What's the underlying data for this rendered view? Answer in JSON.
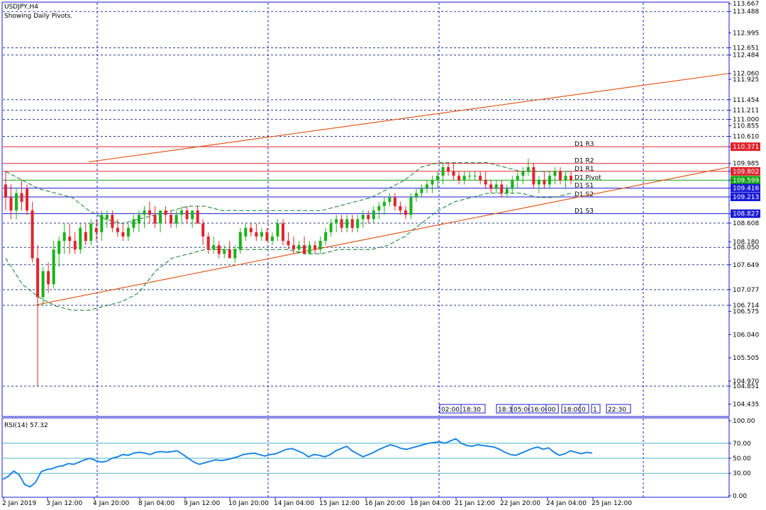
{
  "header": {
    "symbol_line": "USDJPY,H4",
    "subtitle": "Showing Daily Pivots."
  },
  "rsi_label": "RSI(14) 57.32",
  "colors": {
    "bull": "#17b317",
    "bear": "#e0232d",
    "grid": "#1a1ad6",
    "channel": "#e05a1e",
    "bands": "#0a7a2b",
    "rsi": "#1e88e5",
    "red_level": "#e0232d",
    "green_level": "#14a314",
    "blue_level": "#1a1ad6"
  },
  "chart_data": [
    {
      "type": "candlestick",
      "title": "USDJPY,H4",
      "ylim": [
        104.2,
        113.72
      ],
      "price_axis_ticks": [
        "113.667",
        "113.488",
        "112.995",
        "112.651",
        "112.484",
        "112.060",
        "111.925",
        "111.454",
        "111.211",
        "111.000",
        "110.855",
        "110.610",
        "110.371",
        "109.985",
        "109.802",
        "109.599",
        "109.416",
        "109.213",
        "108.827",
        "108.608",
        "108.180",
        "108.050",
        "107.649",
        "107.077",
        "106.714",
        "106.575",
        "106.040",
        "105.505",
        "104.970",
        "104.851",
        "104.435"
      ],
      "highlighted_ticks": [
        {
          "value": "110.371",
          "style": "red"
        },
        {
          "value": "109.802",
          "style": "red"
        },
        {
          "value": "109.599",
          "style": "green"
        },
        {
          "value": "109.416",
          "style": "blue"
        },
        {
          "value": "109.213",
          "style": "blue"
        },
        {
          "value": "108.827",
          "style": "blue"
        }
      ],
      "pivot_levels": [
        {
          "name": "D1 R3",
          "value": 110.371,
          "style": "red"
        },
        {
          "name": "D1 R2",
          "value": 109.985,
          "style": "red"
        },
        {
          "name": "D1 R1",
          "value": 109.802,
          "style": "red"
        },
        {
          "name": "D1 Pivot",
          "value": 109.599,
          "style": "green"
        },
        {
          "name": "D1 S1",
          "value": 109.416,
          "style": "blue"
        },
        {
          "name": "D1 S2",
          "value": 109.213,
          "style": "blue"
        },
        {
          "name": "D1 S3",
          "value": 108.827,
          "style": "blue"
        }
      ],
      "dashed_levels": [
        113.488,
        112.651,
        112.484,
        111.454,
        111.211,
        111.0,
        110.61,
        108.608,
        108.05,
        107.649,
        107.077,
        106.714,
        104.851
      ],
      "time_axis_labels": [
        "2 Jan 2019",
        "3 Jan 12:00",
        "4 Jan 20:00",
        "8 Jan 04:00",
        "9 Jan 12:00",
        "10 Jan 20:00",
        "14 Jan 04:00",
        "15 Jan 12:00",
        "16 Jan 20:00",
        "18 Jan 04:00",
        "21 Jan 12:00",
        "22 Jan 20:00",
        "24 Jan 04:00",
        "25 Jan 12:00"
      ],
      "session_tags": [
        "02:00",
        "18:30",
        "18:30",
        "05:00",
        "16:00",
        "00",
        "18:00",
        "0",
        "1",
        "22:30"
      ],
      "candles": [
        [
          109.5,
          109.8,
          108.9,
          109.2
        ],
        [
          109.2,
          109.5,
          108.7,
          108.9
        ],
        [
          108.9,
          109.4,
          108.7,
          109.3
        ],
        [
          109.3,
          109.6,
          108.9,
          109.1
        ],
        [
          109.4,
          109.5,
          108.8,
          108.9
        ],
        [
          108.9,
          109.1,
          107.7,
          107.8
        ],
        [
          107.8,
          108.1,
          104.85,
          106.9
        ],
        [
          106.9,
          107.6,
          106.7,
          107.5
        ],
        [
          107.5,
          107.7,
          107.0,
          107.2
        ],
        [
          107.2,
          108.2,
          107.1,
          108.0
        ],
        [
          107.9,
          108.3,
          107.6,
          108.2
        ],
        [
          108.2,
          108.6,
          107.9,
          108.4
        ],
        [
          108.3,
          108.6,
          107.9,
          108.2
        ],
        [
          108.2,
          108.4,
          107.9,
          108.0
        ],
        [
          108.0,
          108.6,
          107.9,
          108.5
        ],
        [
          108.4,
          108.6,
          108.1,
          108.2
        ],
        [
          108.2,
          108.7,
          108.1,
          108.6
        ],
        [
          108.5,
          108.7,
          108.2,
          108.4
        ],
        [
          108.4,
          108.9,
          108.2,
          108.8
        ],
        [
          108.7,
          108.9,
          108.5,
          108.8
        ],
        [
          108.8,
          108.9,
          108.4,
          108.5
        ],
        [
          108.5,
          108.7,
          108.3,
          108.4
        ],
        [
          108.4,
          108.6,
          108.2,
          108.3
        ],
        [
          108.3,
          108.6,
          108.2,
          108.5
        ],
        [
          108.5,
          108.8,
          108.4,
          108.7
        ],
        [
          108.6,
          108.9,
          108.4,
          108.8
        ],
        [
          108.8,
          109.0,
          108.5,
          108.9
        ],
        [
          108.9,
          109.1,
          108.6,
          108.8
        ],
        [
          108.8,
          109.0,
          108.5,
          108.6
        ],
        [
          108.6,
          108.9,
          108.4,
          108.9
        ],
        [
          108.9,
          109.0,
          108.6,
          108.8
        ],
        [
          108.8,
          108.9,
          108.5,
          108.6
        ],
        [
          108.6,
          108.9,
          108.5,
          108.8
        ],
        [
          108.8,
          109.0,
          108.6,
          108.9
        ],
        [
          108.9,
          109.0,
          108.6,
          108.7
        ],
        [
          108.7,
          108.9,
          108.5,
          108.9
        ],
        [
          108.9,
          109.0,
          108.6,
          108.6
        ],
        [
          108.6,
          108.7,
          108.1,
          108.3
        ],
        [
          108.3,
          108.4,
          107.9,
          108.0
        ],
        [
          108.0,
          108.3,
          107.9,
          108.1
        ],
        [
          108.1,
          108.2,
          107.8,
          107.9
        ],
        [
          107.9,
          108.1,
          107.8,
          108.0
        ],
        [
          108.0,
          108.2,
          107.8,
          107.8
        ],
        [
          107.8,
          108.1,
          107.7,
          108.0
        ],
        [
          108.0,
          108.5,
          107.9,
          108.4
        ],
        [
          108.3,
          108.6,
          108.2,
          108.5
        ],
        [
          108.5,
          108.6,
          108.3,
          108.4
        ],
        [
          108.4,
          108.6,
          108.2,
          108.3
        ],
        [
          108.3,
          108.5,
          108.2,
          108.4
        ],
        [
          108.4,
          108.5,
          108.2,
          108.2
        ],
        [
          108.2,
          108.4,
          108.1,
          108.3
        ],
        [
          108.3,
          108.7,
          108.2,
          108.6
        ],
        [
          108.6,
          108.7,
          108.1,
          108.2
        ],
        [
          108.2,
          108.4,
          108.0,
          108.1
        ],
        [
          108.1,
          108.3,
          107.9,
          108.0
        ],
        [
          108.0,
          108.2,
          107.9,
          108.1
        ],
        [
          108.1,
          108.3,
          107.9,
          107.9
        ],
        [
          107.9,
          108.2,
          107.9,
          108.1
        ],
        [
          108.1,
          108.2,
          107.9,
          108.0
        ],
        [
          108.0,
          108.3,
          107.9,
          108.2
        ],
        [
          108.2,
          108.5,
          108.1,
          108.4
        ],
        [
          108.4,
          108.7,
          108.3,
          108.6
        ],
        [
          108.6,
          108.8,
          108.4,
          108.7
        ],
        [
          108.7,
          108.8,
          108.4,
          108.5
        ],
        [
          108.5,
          108.8,
          108.4,
          108.7
        ],
        [
          108.7,
          108.8,
          108.4,
          108.5
        ],
        [
          108.5,
          108.8,
          108.4,
          108.7
        ],
        [
          108.7,
          108.9,
          108.5,
          108.8
        ],
        [
          108.8,
          108.9,
          108.6,
          108.7
        ],
        [
          108.7,
          109.0,
          108.6,
          108.9
        ],
        [
          108.9,
          109.1,
          108.7,
          109.0
        ],
        [
          109.0,
          109.2,
          108.8,
          109.1
        ],
        [
          109.1,
          109.3,
          109.0,
          109.2
        ],
        [
          109.2,
          109.3,
          108.9,
          109.0
        ],
        [
          109.0,
          109.1,
          108.8,
          108.9
        ],
        [
          108.9,
          109.0,
          108.7,
          108.8
        ],
        [
          108.8,
          109.3,
          108.7,
          109.2
        ],
        [
          109.2,
          109.4,
          109.1,
          109.3
        ],
        [
          109.3,
          109.5,
          109.2,
          109.4
        ],
        [
          109.4,
          109.6,
          109.3,
          109.5
        ],
        [
          109.5,
          109.7,
          109.3,
          109.6
        ],
        [
          109.6,
          109.8,
          109.4,
          109.7
        ],
        [
          109.7,
          110.0,
          109.5,
          109.9
        ],
        [
          109.9,
          110.0,
          109.7,
          109.8
        ],
        [
          109.8,
          110.0,
          109.6,
          109.7
        ],
        [
          109.7,
          109.8,
          109.5,
          109.6
        ],
        [
          109.6,
          109.8,
          109.5,
          109.7
        ],
        [
          109.7,
          109.8,
          109.6,
          109.7
        ],
        [
          109.7,
          109.8,
          109.6,
          109.7
        ],
        [
          109.7,
          109.8,
          109.5,
          109.6
        ],
        [
          109.6,
          109.8,
          109.4,
          109.5
        ],
        [
          109.5,
          109.6,
          109.3,
          109.4
        ],
        [
          109.4,
          109.6,
          109.3,
          109.5
        ],
        [
          109.5,
          109.6,
          109.2,
          109.3
        ],
        [
          109.3,
          109.5,
          109.2,
          109.4
        ],
        [
          109.4,
          109.7,
          109.3,
          109.6
        ],
        [
          109.6,
          109.8,
          109.4,
          109.7
        ],
        [
          109.7,
          109.9,
          109.5,
          109.8
        ],
        [
          109.8,
          110.1,
          109.7,
          109.9
        ],
        [
          109.9,
          110.0,
          109.4,
          109.5
        ],
        [
          109.5,
          109.7,
          109.3,
          109.6
        ],
        [
          109.6,
          109.8,
          109.4,
          109.5
        ],
        [
          109.5,
          109.8,
          109.4,
          109.7
        ],
        [
          109.7,
          109.9,
          109.5,
          109.8
        ],
        [
          109.8,
          109.9,
          109.5,
          109.6
        ],
        [
          109.6,
          109.8,
          109.4,
          109.7
        ],
        [
          109.7,
          109.8,
          109.5,
          109.6
        ]
      ],
      "channel_upper": [
        [
          125,
          110.02
        ],
        [
          1028,
          112.06
        ]
      ],
      "channel_lower": [
        [
          50,
          106.72
        ],
        [
          1028,
          109.9
        ]
      ],
      "bands_upper": [
        109.8,
        109.6,
        109.4,
        109.3,
        109.2,
        108.9,
        108.7,
        108.6,
        108.7,
        108.8,
        108.9,
        109.0,
        109.0,
        108.9,
        108.9,
        108.9,
        108.9,
        108.9,
        108.9,
        108.9,
        109.0,
        109.1,
        109.2,
        109.4,
        109.6,
        109.9,
        110.0,
        110.0,
        110.0,
        110.0,
        109.9,
        109.8,
        109.8,
        109.8,
        109.8
      ],
      "bands_lower": [
        107.8,
        107.2,
        106.9,
        106.7,
        106.6,
        106.6,
        106.7,
        106.8,
        107.0,
        107.5,
        107.8,
        107.9,
        108.0,
        108.0,
        108.0,
        108.0,
        108.0,
        108.0,
        107.9,
        107.9,
        108.0,
        108.0,
        108.0,
        108.1,
        108.3,
        108.6,
        108.9,
        109.1,
        109.2,
        109.3,
        109.3,
        109.3,
        109.2,
        109.2,
        109.3
      ],
      "bands_start_index": 0
    },
    {
      "type": "line",
      "title": "RSI(14) 57.32",
      "ylim": [
        0,
        100
      ],
      "axis_ticks": [
        "100.00",
        "70.00",
        "50.00",
        "30.00",
        "0.00"
      ],
      "levels": [
        70,
        50,
        30
      ],
      "values": [
        22,
        26,
        33,
        28,
        15,
        12,
        18,
        32,
        35,
        36,
        39,
        40,
        43,
        42,
        45,
        48,
        50,
        47,
        45,
        46,
        50,
        52,
        55,
        54,
        57,
        58,
        57,
        55,
        58,
        59,
        58,
        59,
        60,
        55,
        50,
        45,
        42,
        44,
        46,
        48,
        47,
        48,
        50,
        52,
        55,
        56,
        57,
        55,
        53,
        55,
        56,
        59,
        62,
        63,
        60,
        57,
        52,
        55,
        54,
        52,
        55,
        60,
        63,
        66,
        60,
        56,
        52,
        55,
        58,
        62,
        65,
        68,
        66,
        63,
        62,
        64,
        66,
        68,
        70,
        71,
        72,
        70,
        73,
        76,
        70,
        67,
        66,
        68,
        67,
        66,
        65,
        62,
        58,
        55,
        54,
        57,
        60,
        63,
        65,
        62,
        64,
        58,
        54,
        56,
        60,
        58,
        56,
        58,
        57
      ]
    }
  ]
}
